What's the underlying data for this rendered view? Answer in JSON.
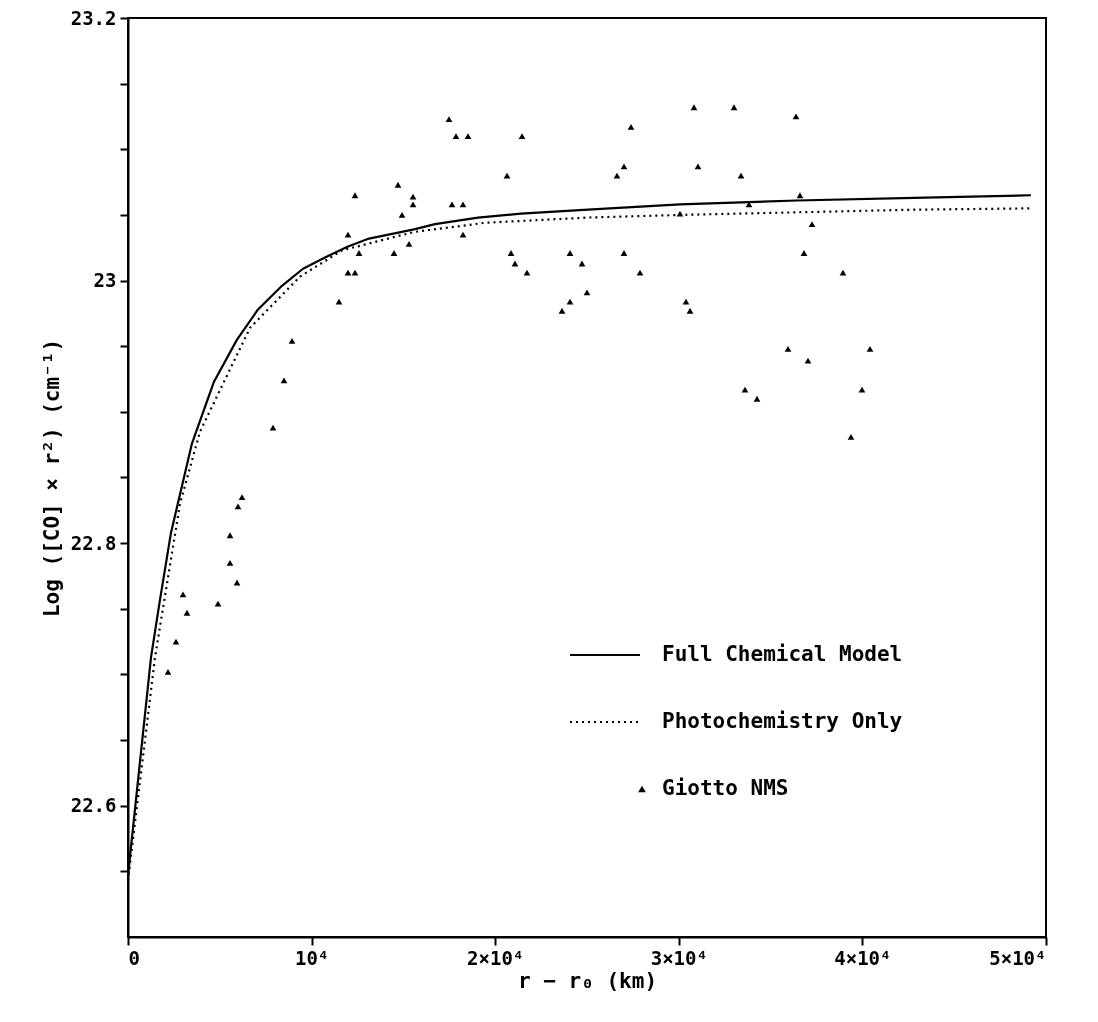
{
  "chart_data": {
    "type": "line",
    "xlabel": "r − r₀ (km)",
    "ylabel": "Log ([CO] × r²) (cm⁻¹)",
    "xlim": [
      0,
      50000
    ],
    "ylim": [
      22.5,
      23.2
    ],
    "xticks": [
      0,
      {
        "value": 10000,
        "label": "10⁴"
      },
      {
        "value": 20000,
        "label": "2×10⁴"
      },
      {
        "value": 30000,
        "label": "3×10⁴"
      },
      {
        "value": 40000,
        "label": "4×10⁴"
      },
      {
        "value": 50000,
        "label": "5×10⁴"
      }
    ],
    "yticks": [
      {
        "value": 22.55,
        "label": null
      },
      22.6,
      {
        "value": 22.65,
        "label": null
      },
      {
        "value": 22.7,
        "label": null
      },
      {
        "value": 22.75,
        "label": null
      },
      22.8,
      {
        "value": 22.85,
        "label": null
      },
      {
        "value": 22.9,
        "label": null
      },
      {
        "value": 22.95,
        "label": null
      },
      23,
      {
        "value": 23.05,
        "label": null
      },
      {
        "value": 23.1,
        "label": null
      },
      {
        "value": 23.15,
        "label": null
      },
      23.2
    ],
    "grid": false,
    "legend": "bottom right",
    "series": [
      {
        "name": "Full Chemical Model",
        "line_style": "solid",
        "color": "#000000",
        "x": [
          0,
          1253,
          1743,
          2342,
          3486,
          4684,
          5937,
          7081,
          8388,
          9532,
          10784,
          11983,
          13126,
          15577,
          16721,
          19063,
          21405,
          25054,
          30065,
          36438,
          42810,
          49183
        ],
        "values": [
          22.547,
          22.713,
          22.757,
          22.808,
          22.876,
          22.923,
          22.955,
          22.978,
          22.996,
          23.009,
          23.018,
          23.026,
          23.032,
          23.039,
          23.043,
          23.048,
          23.051,
          23.054,
          23.058,
          23.061,
          23.063,
          23.065
        ]
      },
      {
        "name": "Photochemistry Only",
        "line_style": "dotted",
        "color": "#000000",
        "x": [
          0,
          1471,
          2832,
          3922,
          6645,
          9368,
          11656,
          15577,
          19444,
          25054,
          30065,
          42810,
          49183
        ],
        "values": [
          22.543,
          22.713,
          22.83,
          22.885,
          22.964,
          23.003,
          23.023,
          23.037,
          23.044,
          23.048,
          23.05,
          23.054,
          23.055
        ]
      },
      {
        "name": "Giotto NMS",
        "type": "scatter",
        "marker": "triangle",
        "color": "#000000",
        "x": [
          2179,
          2614,
          2996,
          3214,
          4902,
          5556,
          5556,
          5937,
          5991,
          6209,
          7898,
          8497,
          8932,
          11492,
          11983,
          11983,
          12364,
          12364,
          12582,
          14488,
          14706,
          14924,
          15305,
          15523,
          15523,
          17484,
          17647,
          17865,
          18246,
          18246,
          18518,
          20643,
          20861,
          21078,
          21460,
          21732,
          23638,
          24074,
          24074,
          24728,
          25000,
          26634,
          27015,
          27015,
          27397,
          27887,
          30065,
          30392,
          30610,
          30828,
          31046,
          33007,
          33388,
          33606,
          33824,
          34259,
          35948,
          36383,
          36601,
          36819,
          37037,
          37255,
          38943,
          39379,
          39978,
          40414
        ],
        "values": [
          22.702,
          22.725,
          22.761,
          22.747,
          22.754,
          22.806,
          22.785,
          22.77,
          22.828,
          22.835,
          22.888,
          22.924,
          22.954,
          22.984,
          23.035,
          23.006,
          23.006,
          23.065,
          23.021,
          23.021,
          23.073,
          23.05,
          23.028,
          23.064,
          23.058,
          23.123,
          23.058,
          23.11,
          23.058,
          23.035,
          23.11,
          23.08,
          23.021,
          23.013,
          23.11,
          23.006,
          22.977,
          23.021,
          22.984,
          23.013,
          22.991,
          23.08,
          23.087,
          23.021,
          23.117,
          23.006,
          23.051,
          22.984,
          22.977,
          23.132,
          23.087,
          23.132,
          23.08,
          22.917,
          23.058,
          22.91,
          22.948,
          23.125,
          23.065,
          23.021,
          22.939,
          23.043,
          23.006,
          22.881,
          22.917,
          22.948
        ]
      }
    ]
  }
}
